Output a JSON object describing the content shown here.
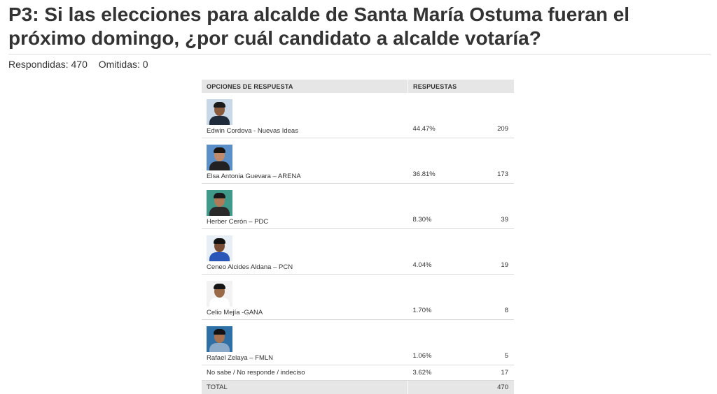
{
  "header": {
    "title": "P3: Si las elecciones para alcalde de Santa María Ostuma fueran el próximo domingo, ¿por cuál candidato a alcalde votaría?",
    "answered": "Respondidas: 470",
    "skipped": "Omitidas: 0"
  },
  "table": {
    "col_options": "OPCIONES DE RESPUESTA",
    "col_responses": "RESPUESTAS",
    "rows": [
      {
        "option": "Edwin Cordova - Nuevas Ideas",
        "percent": "44.47%",
        "count": "209",
        "photo": {
          "bg": "#c9d8e8",
          "skin": "#8a5a3c",
          "hair": "#1a1a1a",
          "body": "#1f2a3a"
        }
      },
      {
        "option": "Elsa Antonia Guevara – ARENA",
        "percent": "36.81%",
        "count": "173",
        "photo": {
          "bg": "#5a8fc8",
          "skin": "#c08a6a",
          "hair": "#1a1410",
          "body": "#222222"
        }
      },
      {
        "option": "Herber Cerón – PDC",
        "percent": "8.30%",
        "count": "39",
        "photo": {
          "bg": "#3f9a8a",
          "skin": "#b07a58",
          "hair": "#1a1a1a",
          "body": "#2a2a2a"
        }
      },
      {
        "option": "Ceneo Alcides Aldana – PCN",
        "percent": "4.04%",
        "count": "19",
        "photo": {
          "bg": "#e8eef6",
          "skin": "#7a4e34",
          "hair": "#111111",
          "body": "#2a56b8"
        }
      },
      {
        "option": "Celio Mejía -GANA",
        "percent": "1.70%",
        "count": "8",
        "photo": {
          "bg": "#f2f2f2",
          "skin": "#9a6a48",
          "hair": "#151515",
          "body": "#ffffff"
        }
      },
      {
        "option": "Rafael Zelaya – FMLN",
        "percent": "1.06%",
        "count": "5",
        "photo": {
          "bg": "#2e6fa6",
          "skin": "#a87250",
          "hair": "#121212",
          "body": "#8aa8c8"
        }
      }
    ],
    "other": {
      "option": "No sabe / No responde / indeciso",
      "percent": "3.62%",
      "count": "17"
    },
    "total": {
      "label": "TOTAL",
      "count": "470"
    }
  }
}
